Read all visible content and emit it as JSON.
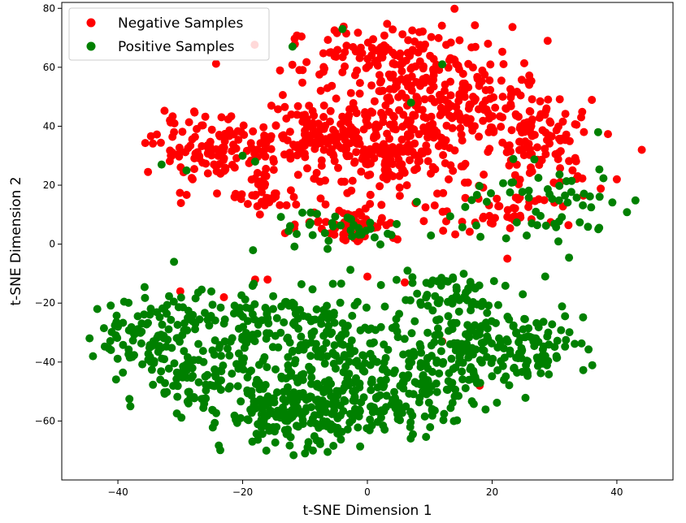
{
  "chart_data": {
    "type": "scatter",
    "title": "",
    "xlabel": "t-SNE Dimension 1",
    "ylabel": "t-SNE Dimension 2",
    "xlim": [
      -49,
      49
    ],
    "ylim": [
      -80,
      82
    ],
    "xticks": [
      -40,
      -20,
      0,
      20,
      40
    ],
    "yticks": [
      -60,
      -40,
      -20,
      0,
      20,
      40,
      60,
      80
    ],
    "xtick_labels": [
      "−40",
      "−20",
      "0",
      "20",
      "40"
    ],
    "ytick_labels": [
      "−60",
      "−40",
      "−20",
      "0",
      "20",
      "40",
      "60",
      "80"
    ],
    "grid": false,
    "legend_position": "top-left",
    "series": [
      {
        "name": "Negative Samples",
        "color": "#ff0000",
        "clusters": [
          {
            "cx": 5,
            "cy": 62,
            "sx": 9,
            "sy": 6,
            "n": 160
          },
          {
            "cx": 12,
            "cy": 47,
            "sx": 7,
            "sy": 7,
            "n": 180
          },
          {
            "cx": -8,
            "cy": 37,
            "sx": 6,
            "sy": 6,
            "n": 150
          },
          {
            "cx": -24,
            "cy": 32,
            "sx": 5,
            "sy": 6,
            "n": 120
          },
          {
            "cx": 3,
            "cy": 28,
            "sx": 6,
            "sy": 6,
            "n": 140
          },
          {
            "cx": 28,
            "cy": 35,
            "sx": 5,
            "sy": 8,
            "n": 110
          },
          {
            "cx": -3,
            "cy": 7,
            "sx": 4,
            "sy": 3,
            "n": 60
          },
          {
            "cx": 22,
            "cy": 12,
            "sx": 6,
            "sy": 5,
            "n": 50
          },
          {
            "cx": -16,
            "cy": 17,
            "sx": 3,
            "sy": 3,
            "n": 40
          }
        ],
        "sparse": [
          [
            44,
            32
          ],
          [
            40,
            22
          ],
          [
            -31,
            38
          ],
          [
            -16,
            -12
          ],
          [
            -18,
            -12
          ],
          [
            12,
            -33
          ],
          [
            18,
            -48
          ],
          [
            -30,
            -16
          ],
          [
            -23,
            -18
          ],
          [
            6,
            -13
          ],
          [
            0,
            -11
          ]
        ]
      },
      {
        "name": "Positive Samples",
        "color": "#008000",
        "clusters": [
          {
            "cx": -35,
            "cy": -33,
            "sx": 4,
            "sy": 7,
            "n": 90
          },
          {
            "cx": -25,
            "cy": -45,
            "sx": 5,
            "sy": 7,
            "n": 110
          },
          {
            "cx": -11,
            "cy": -58,
            "sx": 6,
            "sy": 6,
            "n": 190
          },
          {
            "cx": -6,
            "cy": -35,
            "sx": 6,
            "sy": 9,
            "n": 170
          },
          {
            "cx": 6,
            "cy": -52,
            "sx": 6,
            "sy": 7,
            "n": 120
          },
          {
            "cx": 14,
            "cy": -37,
            "sx": 5,
            "sy": 7,
            "n": 110
          },
          {
            "cx": 25,
            "cy": -35,
            "sx": 5,
            "sy": 6,
            "n": 100
          },
          {
            "cx": -22,
            "cy": -23,
            "sx": 6,
            "sy": 6,
            "n": 80
          },
          {
            "cx": 12,
            "cy": -17,
            "sx": 5,
            "sy": 5,
            "n": 60
          },
          {
            "cx": 28,
            "cy": 13,
            "sx": 7,
            "sy": 7,
            "n": 60
          },
          {
            "cx": 0,
            "cy": 5,
            "sx": 8,
            "sy": 5,
            "n": 40
          }
        ],
        "sparse": [
          [
            -44,
            -38
          ],
          [
            -31,
            -6
          ],
          [
            -4,
            73
          ],
          [
            -12,
            67
          ],
          [
            12,
            61
          ],
          [
            7,
            48
          ],
          [
            37,
            38
          ],
          [
            -33,
            27
          ],
          [
            -29,
            25
          ],
          [
            -40,
            -28
          ],
          [
            29,
            -30
          ],
          [
            -38,
            -55
          ],
          [
            -10,
            -71
          ],
          [
            17,
            -43
          ],
          [
            -18,
            28
          ],
          [
            -20,
            30
          ]
        ]
      }
    ]
  }
}
